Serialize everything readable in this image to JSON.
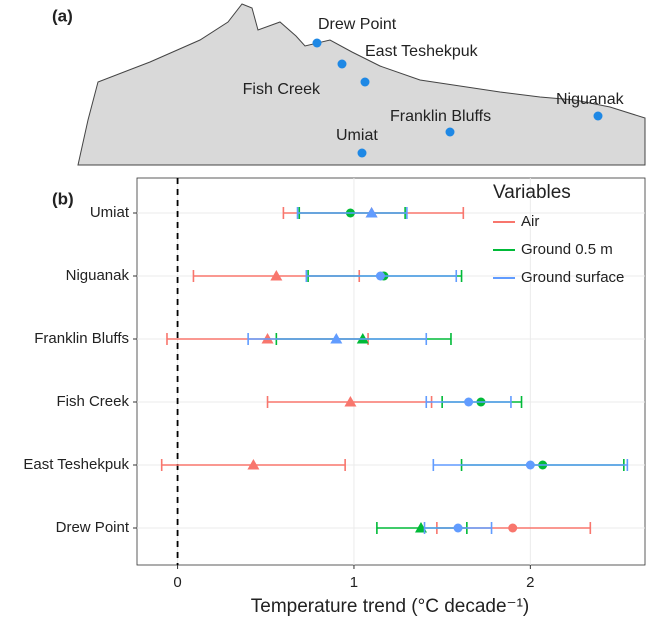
{
  "panels": [
    "(a)",
    "(b)"
  ],
  "map": {
    "sites": [
      "Drew Point",
      "East Teshekpuk",
      "Fish Creek",
      "Franklin Bluffs",
      "Niguanak",
      "Umiat"
    ]
  },
  "chart_data": {
    "type": "errorbar",
    "x_label": "Temperature trend (°C decade⁻¹)",
    "categories": [
      "Umiat",
      "Niguanak",
      "Franklin Bluffs",
      "Fish Creek",
      "East Teshekpuk",
      "Drew Point"
    ],
    "legend_title": "Variables",
    "legend_position": "top-right",
    "series": [
      {
        "name": "Air",
        "color": "#F8766D",
        "values": [
          1.1,
          0.56,
          0.51,
          0.98,
          0.43,
          1.9
        ],
        "lower": [
          0.6,
          0.09,
          -0.06,
          0.51,
          -0.09,
          1.47
        ],
        "upper": [
          1.62,
          1.03,
          1.08,
          1.44,
          0.95,
          2.34
        ],
        "markers": [
          "triangle",
          "triangle",
          "triangle",
          "triangle",
          "triangle",
          "circle"
        ]
      },
      {
        "name": "Ground 0.5 m",
        "color": "#00BA38",
        "values": [
          0.98,
          1.17,
          1.05,
          1.72,
          2.07,
          1.38
        ],
        "lower": [
          0.69,
          0.74,
          0.56,
          1.5,
          1.61,
          1.13
        ],
        "upper": [
          1.29,
          1.61,
          1.55,
          1.95,
          2.53,
          1.64
        ],
        "markers": [
          "circle",
          "circle",
          "triangle",
          "circle",
          "circle",
          "triangle"
        ]
      },
      {
        "name": "Ground surface",
        "color": "#619CFF",
        "values": [
          1.1,
          1.15,
          0.9,
          1.65,
          2.0,
          1.59
        ],
        "lower": [
          0.68,
          0.73,
          0.4,
          1.41,
          1.45,
          1.4
        ],
        "upper": [
          1.3,
          1.58,
          1.41,
          1.89,
          2.55,
          1.78
        ],
        "markers": [
          "triangle",
          "circle",
          "triangle",
          "circle",
          "circle",
          "circle"
        ]
      }
    ],
    "xlim": [
      -0.23,
      2.65
    ],
    "xticks": [
      0,
      1,
      2
    ],
    "vline": 0,
    "grid": true
  }
}
